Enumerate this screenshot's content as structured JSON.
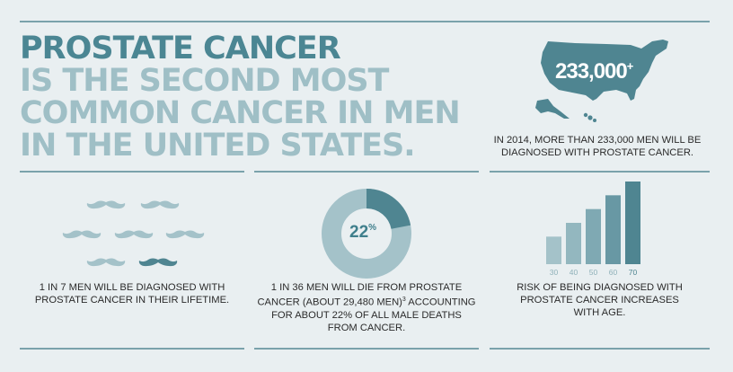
{
  "headline": {
    "line1": "PROSTATE CANCER",
    "line2": "IS THE SECOND MOST",
    "line3": "COMMON CANCER IN MEN",
    "line4": "IN THE UNITED STATES."
  },
  "map_stat": {
    "value": "233,000",
    "sup": "+",
    "caption_line1": "IN 2014, MORE THAN 233,000 MEN WILL BE",
    "caption_line2": "DIAGNOSED WITH PROSTATE CANCER."
  },
  "mustache_stat": {
    "highlighted_count": 1,
    "total_count": 7,
    "caption_line1": "1 IN 7 MEN WILL BE DIAGNOSED WITH",
    "caption_line2": "PROSTATE CANCER IN THEIR LIFETIME."
  },
  "donut_stat": {
    "percent": 22,
    "label": "22",
    "sup": "%",
    "caption_line1": "1 IN 36 MEN WILL DIE FROM PROSTATE",
    "caption_line2": "CANCER (ABOUT 29,480 MEN)",
    "caption_line2_sup": "3",
    "caption_line2_tail": " ACCOUNTING",
    "caption_line3": "FOR ABOUT 22% OF ALL MALE DEATHS",
    "caption_line4": "FROM CANCER."
  },
  "age_stat": {
    "caption_line1": "RISK OF BEING DIAGNOSED WITH",
    "caption_line2": "PROSTATE CANCER INCREASES",
    "caption_line3": "WITH AGE."
  },
  "chart_data": {
    "type": "bar",
    "categories": [
      "30",
      "40",
      "50",
      "60",
      "70"
    ],
    "values": [
      2,
      3,
      4,
      5,
      6
    ],
    "title": "",
    "xlabel": "",
    "ylabel": "",
    "grid": false
  },
  "colors": {
    "dark_teal": "#4f8591",
    "light_teal": "#a4c2c9",
    "mid_teal": "#7aa2ab",
    "background": "#e9eff1"
  }
}
